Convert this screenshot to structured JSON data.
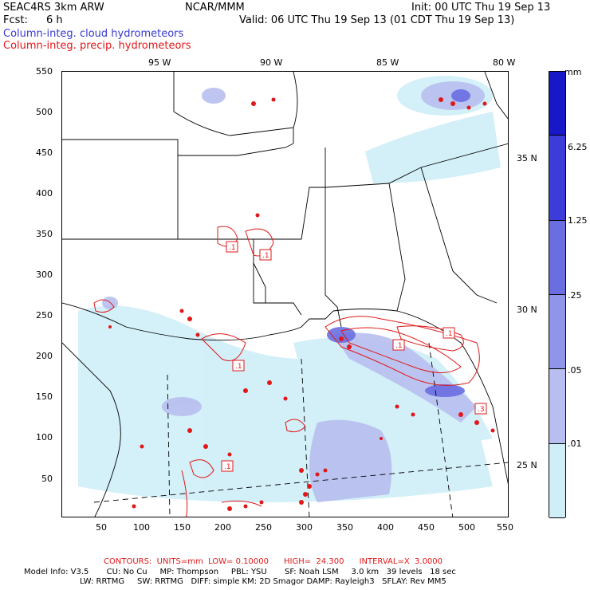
{
  "header": {
    "model": "SEAC4RS 3km ARW",
    "org": "NCAR/MMM",
    "init": "Init: 00 UTC Thu 19 Sep 13",
    "fcst_label": "Fcst:",
    "fcst_value": "6 h",
    "valid": "Valid: 06 UTC Thu 19 Sep 13 (01 CDT Thu 19 Sep 13)",
    "field1": "Column-integ. cloud hydrometeors",
    "field2": "Column-integ. precip. hydrometeors"
  },
  "colors": {
    "field1": "#3a3ad0",
    "field2": "#e01818",
    "contour": "#e01818"
  },
  "axes": {
    "x_ticks": [
      "50",
      "100",
      "150",
      "200",
      "250",
      "300",
      "350",
      "400",
      "450",
      "500",
      "550"
    ],
    "y_ticks": [
      "50",
      "100",
      "150",
      "200",
      "250",
      "300",
      "350",
      "400",
      "450",
      "500",
      "550"
    ],
    "lon_labels": [
      "95 W",
      "90 W",
      "85 W",
      "80 W"
    ],
    "lat_labels": [
      "35 N",
      "30 N",
      "25 N"
    ],
    "xlim": [
      0,
      550
    ],
    "ylim": [
      0,
      550
    ]
  },
  "colorbar": {
    "unit": "mm",
    "labels": [
      "6.25",
      "1.25",
      ".25",
      ".05",
      ".01"
    ],
    "colors": [
      "#ffffff",
      "#cfeef8",
      "#b8bff0",
      "#8f95e8",
      "#6a6ee0",
      "#3c3cd8",
      "#1818c8"
    ]
  },
  "contour_labels": [
    ".1",
    ".1",
    ".1",
    ".1",
    ".1",
    ".1",
    ".3"
  ],
  "footer": {
    "contours": "CONTOURS:  UNITS=mm  LOW= 0.10000      HIGH=  24.300      INTERVAL=X  3.0000",
    "model_info": "Model Info: V3.5       CU: No Cu     MP: Thompson     PBL: YSU       SF: Noah LSM     3.0 km   39 levels   18 sec",
    "model_info2": "LW: RRTMG     SW: RRTMG   DIFF: simple KM: 2D Smagor DAMP: Rayleigh3   SFLAY: Rev MM5"
  }
}
